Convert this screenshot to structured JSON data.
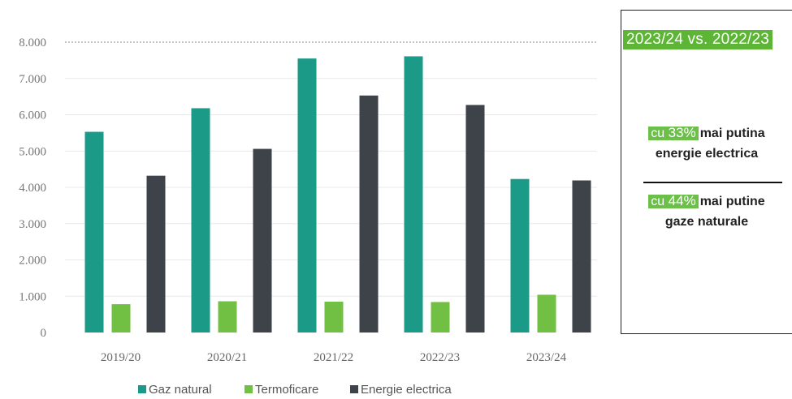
{
  "chart_data": {
    "type": "bar",
    "categories": [
      "2019/20",
      "2020/21",
      "2021/22",
      "2022/23",
      "2023/24"
    ],
    "series": [
      {
        "name": "Gaz natural",
        "color": "#1a9a87",
        "values": [
          5530,
          6180,
          7550,
          7610,
          4230
        ]
      },
      {
        "name": "Termoficare",
        "color": "#72c043",
        "values": [
          780,
          860,
          850,
          840,
          1040
        ]
      },
      {
        "name": "Energie electrica",
        "color": "#3e4349",
        "values": [
          4320,
          5060,
          6530,
          6270,
          4190
        ]
      }
    ],
    "ylim": [
      0,
      8000
    ],
    "yticks": [
      {
        "value": 0,
        "label": "0"
      },
      {
        "value": 1000,
        "label": "1.000"
      },
      {
        "value": 2000,
        "label": "2.000"
      },
      {
        "value": 3000,
        "label": "3.000"
      },
      {
        "value": 4000,
        "label": "4.000"
      },
      {
        "value": 5000,
        "label": "5.000"
      },
      {
        "value": 6000,
        "label": "6.000"
      },
      {
        "value": 7000,
        "label": "7.000"
      },
      {
        "value": 8000,
        "label": "8.000"
      }
    ],
    "grid": true,
    "legend_position": "bottom"
  },
  "info_box": {
    "header": "2023/24 vs. 2022/23",
    "stat1": {
      "prefix": "cu",
      "value": "33%",
      "line1": "mai putina",
      "line2": "energie electrica"
    },
    "stat2": {
      "prefix": "cu",
      "value": "44%",
      "line1": "mai putine",
      "line2": "gaze naturale"
    }
  }
}
